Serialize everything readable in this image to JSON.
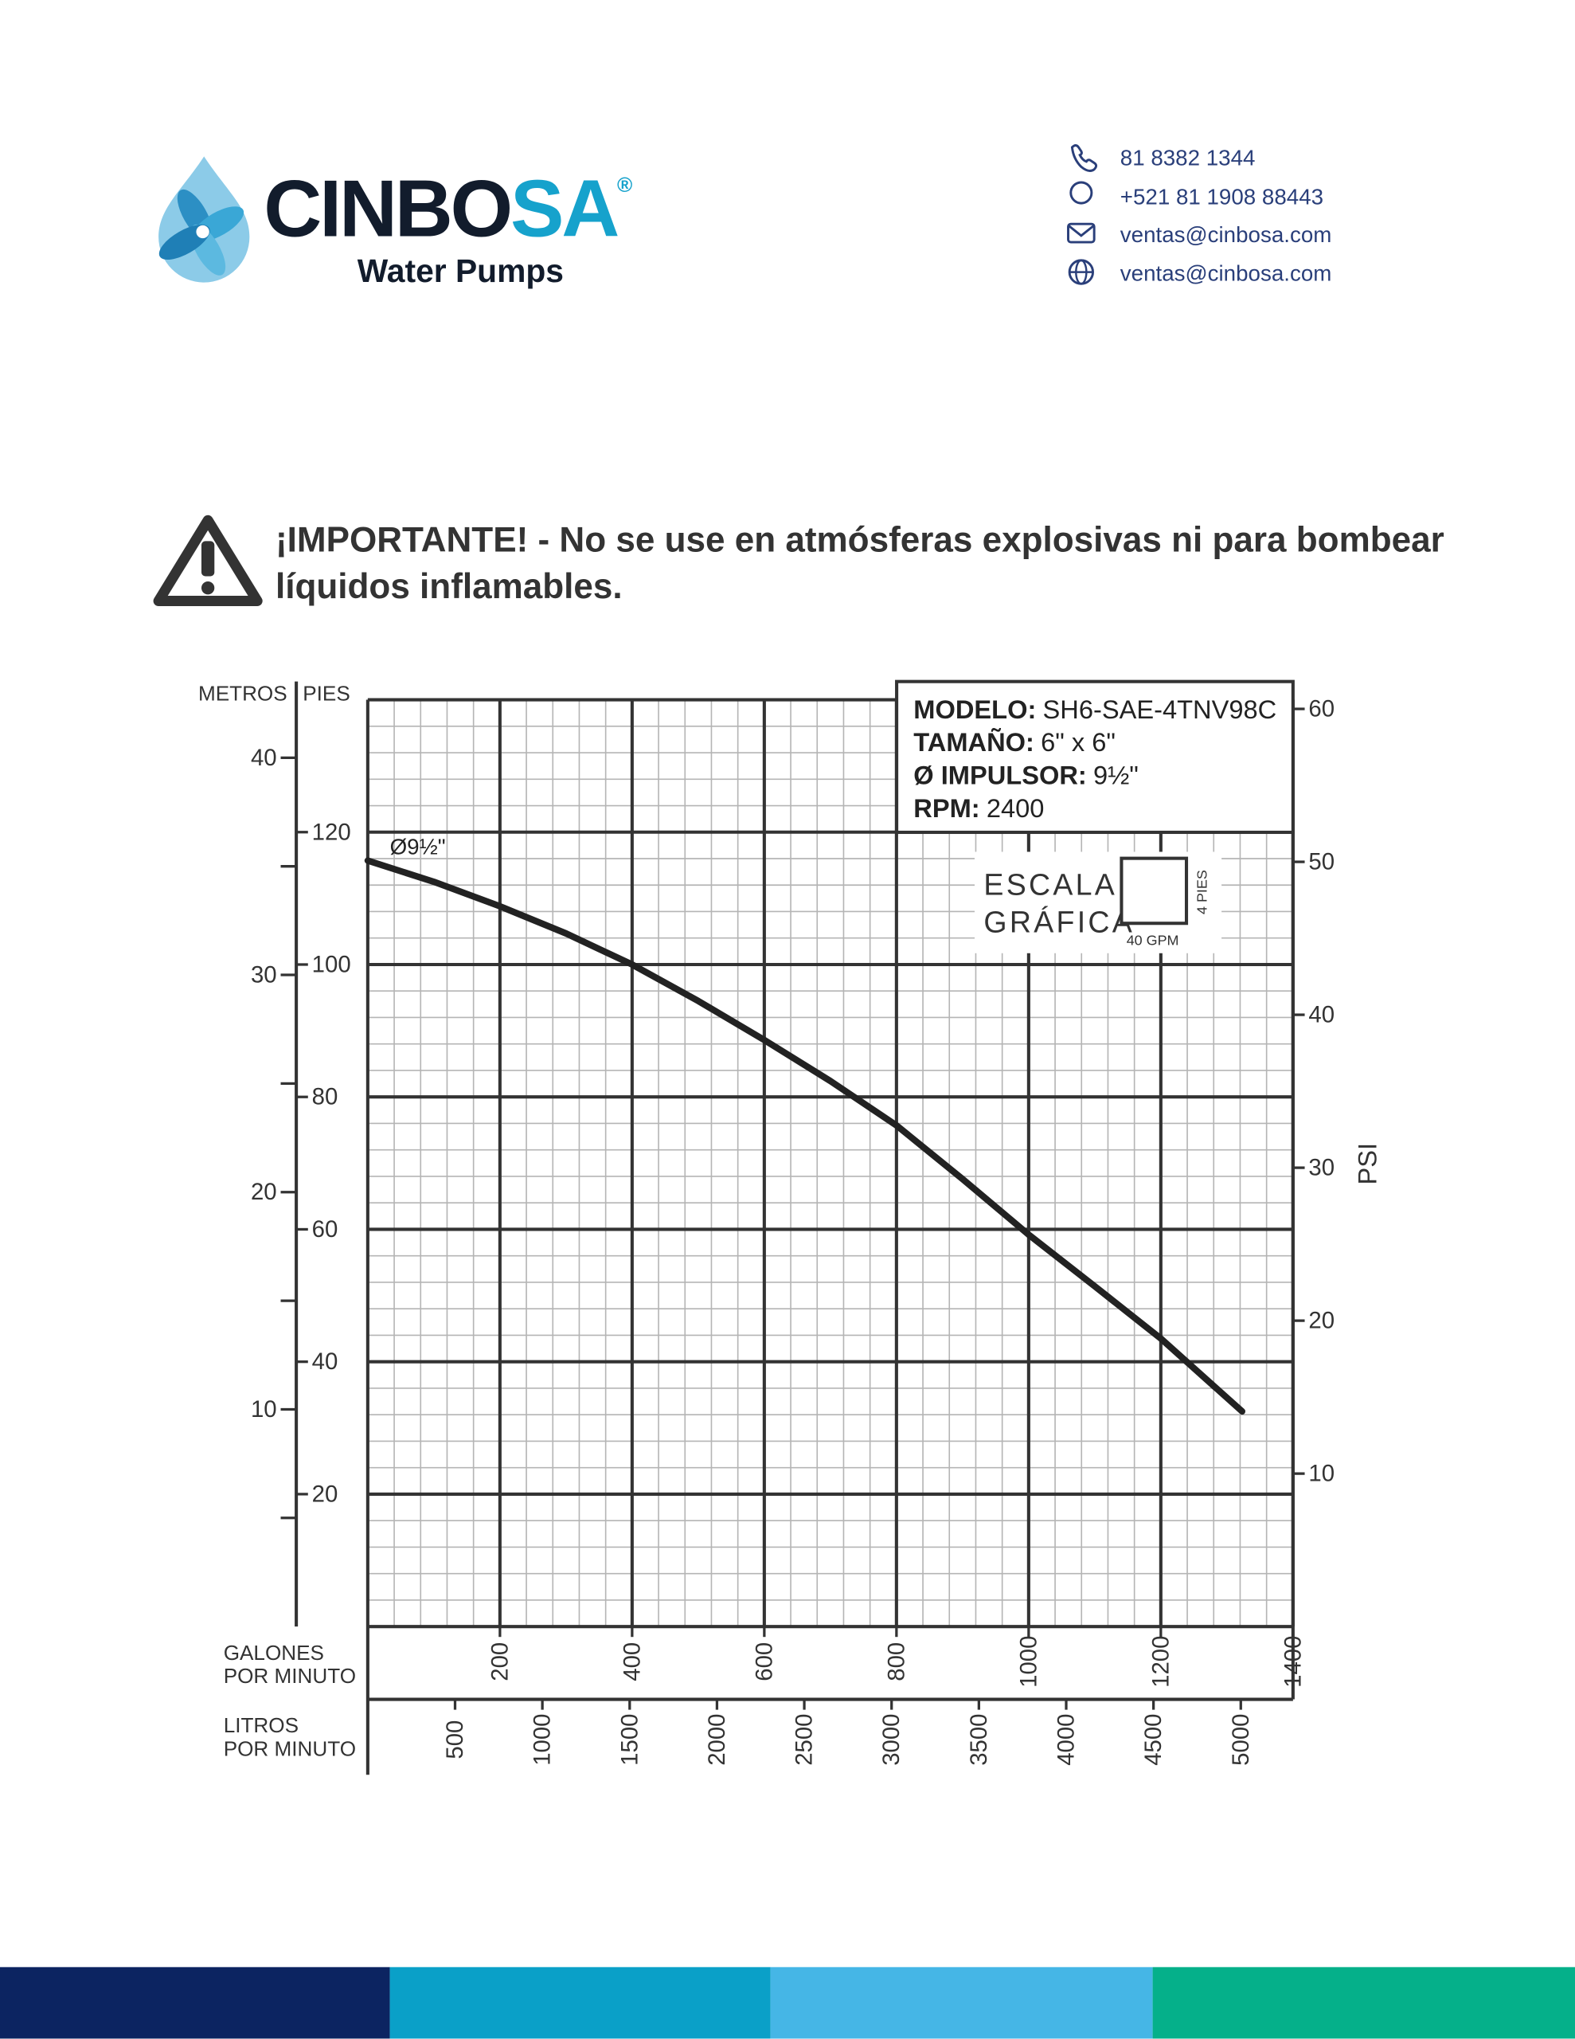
{
  "header": {
    "logo": {
      "name_dark": "CINBO",
      "name_accent": "SA",
      "mark": "®",
      "tagline": "Water Pumps"
    },
    "contacts": [
      "81 8382 1344",
      "+521 81 1908 88443",
      "ventas@cinbosa.com",
      "ventas@cinbosa.com"
    ]
  },
  "warning": {
    "lines": [
      "¡IMPORTANTE! - No se use en atmósferas explosivas ni para bombear",
      "líquidos inflamables."
    ]
  },
  "chart_data": {
    "type": "line",
    "annotation": "Ø9½\"",
    "info": [
      {
        "label": "MODELO:",
        "value": "SH6-SAE-4TNV98C"
      },
      {
        "label": "TAMAÑO:",
        "value": "6\" x 6\""
      },
      {
        "label": "Ø IMPULSOR:",
        "value": "9½\""
      },
      {
        "label": "RPM:",
        "value": "2400"
      }
    ],
    "scale": {
      "lines": [
        "ESCALA",
        "GRÁFICA"
      ],
      "x": {
        "value": 40,
        "label": "40 GPM"
      },
      "y": {
        "value": 4,
        "label": "4 PIES"
      }
    },
    "x": [
      0,
      100,
      200,
      300,
      400,
      500,
      600,
      700,
      800,
      900,
      1000,
      1100,
      1200,
      1323
    ],
    "series": [
      {
        "color": "#222222",
        "values": [
          115.7,
          112.5,
          108.8,
          104.7,
          100,
          94.5,
          88.6,
          82.4,
          75.7,
          67.6,
          59.2,
          51.4,
          43.5,
          32.5
        ]
      }
    ],
    "xlabel": [
      "GALONES",
      "POR MINUTO"
    ],
    "xlim": [
      0,
      1400
    ],
    "xticks": [
      200,
      400,
      600,
      800,
      1000,
      1200,
      1400
    ],
    "x2label": [
      "LITROS",
      "POR MINUTO"
    ],
    "x2lim": [
      0,
      5299
    ],
    "x2ticks": [
      500,
      1000,
      1500,
      2000,
      2500,
      3000,
      3500,
      4000,
      4500,
      5000
    ],
    "ylabel": "PIES",
    "ylim": [
      0,
      140
    ],
    "yticks": [
      20,
      40,
      60,
      80,
      100,
      120
    ],
    "y3label": "METROS",
    "y3lim": [
      0,
      42.67
    ],
    "y3ticks": [
      10,
      20,
      30,
      40
    ],
    "y3minor": [
      5,
      15,
      25,
      35
    ],
    "y2label": "PSI",
    "y2lim": [
      0,
      60.6
    ],
    "y2ticks": [
      10,
      20,
      30,
      40,
      50,
      60
    ],
    "grid": true
  }
}
